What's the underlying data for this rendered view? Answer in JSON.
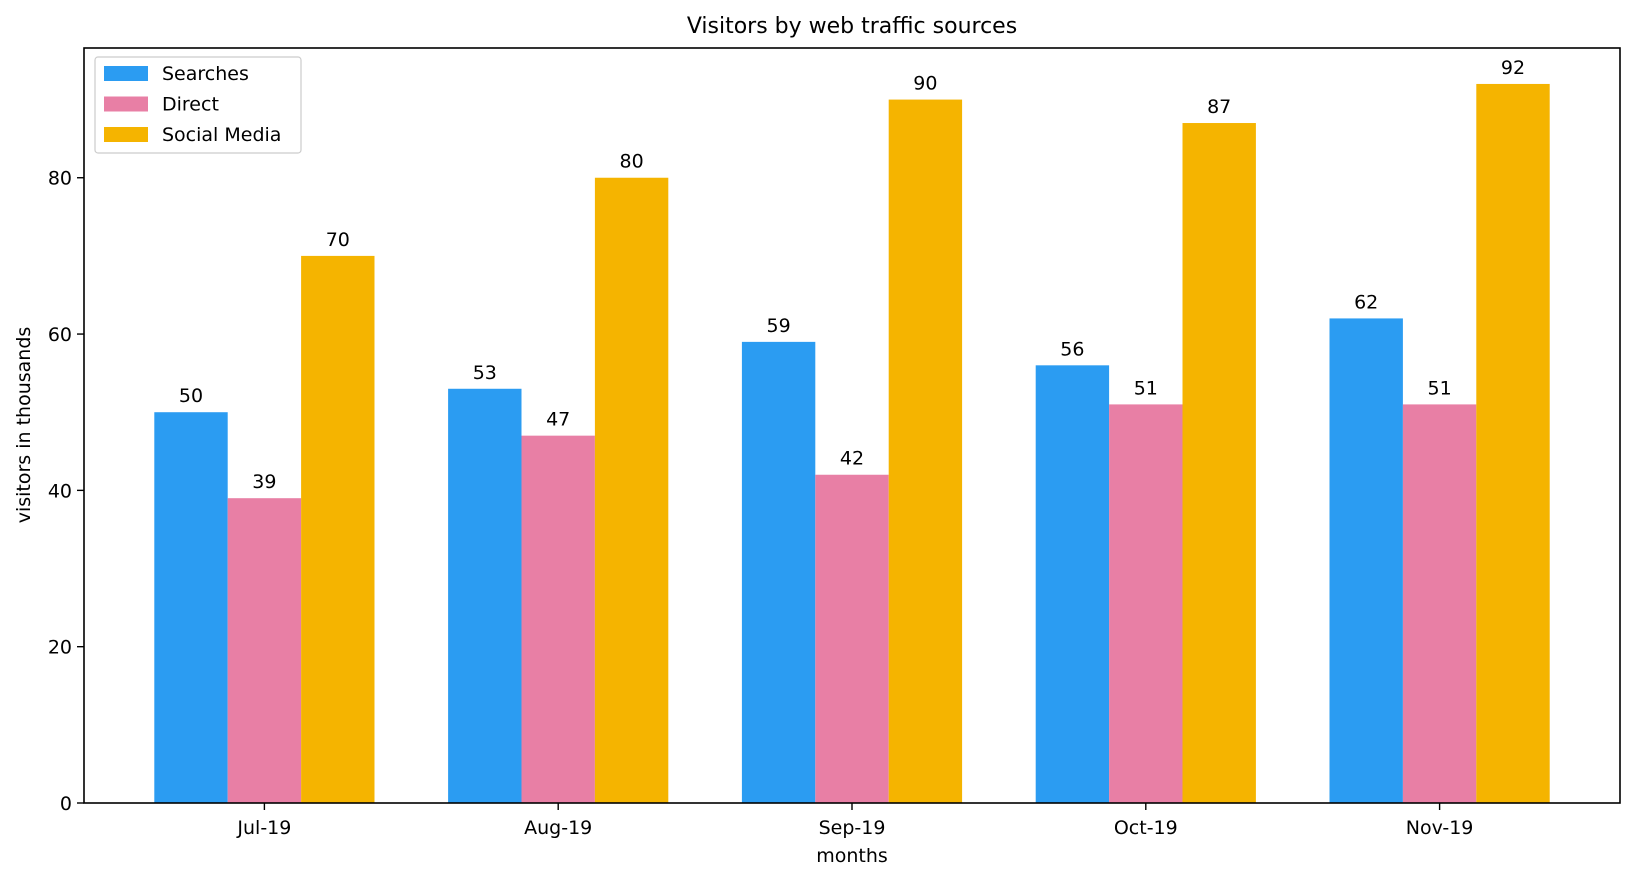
{
  "chart_data": {
    "type": "bar",
    "title": "Visitors by web traffic sources",
    "xlabel": "months",
    "ylabel": "visitors in thousands",
    "categories": [
      "Jul-19",
      "Aug-19",
      "Sep-19",
      "Oct-19",
      "Nov-19"
    ],
    "series": [
      {
        "name": "Searches",
        "color": "#2b9cf2",
        "values": [
          50,
          53,
          59,
          56,
          62
        ]
      },
      {
        "name": "Direct",
        "color": "#e87fa5",
        "values": [
          39,
          47,
          42,
          51,
          51
        ]
      },
      {
        "name": "Social Media",
        "color": "#f5b400",
        "values": [
          70,
          80,
          90,
          87,
          92
        ]
      }
    ],
    "ylim": [
      0,
      96.6
    ],
    "yticks": [
      0,
      20,
      40,
      60,
      80
    ],
    "grid": false,
    "legend_position": "top-left",
    "data_labels": true
  }
}
